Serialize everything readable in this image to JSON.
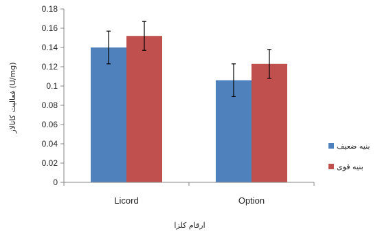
{
  "chart_data": {
    "type": "bar",
    "categories": [
      "Licord",
      "Option"
    ],
    "series": [
      {
        "name": "بنیه ضعیف",
        "color": "#4F81BD",
        "values": [
          0.14,
          0.106
        ],
        "errors": [
          0.017,
          0.017
        ]
      },
      {
        "name": "بنیه قوی",
        "color": "#C0504D",
        "values": [
          0.152,
          0.123
        ],
        "errors": [
          0.015,
          0.015
        ]
      }
    ],
    "title": "",
    "xlabel": "ارقام کلزا",
    "ylabel": "فعالیت کاتالاز (U/mg)",
    "ylim": [
      0,
      0.18
    ],
    "yticks": [
      "0",
      "0.02",
      "0.04",
      "0.06",
      "0.08",
      "0.1",
      "0.12",
      "0.14",
      "0.16",
      "0.18"
    ],
    "grid": false,
    "legend_position": "right",
    "error_bars": true
  }
}
